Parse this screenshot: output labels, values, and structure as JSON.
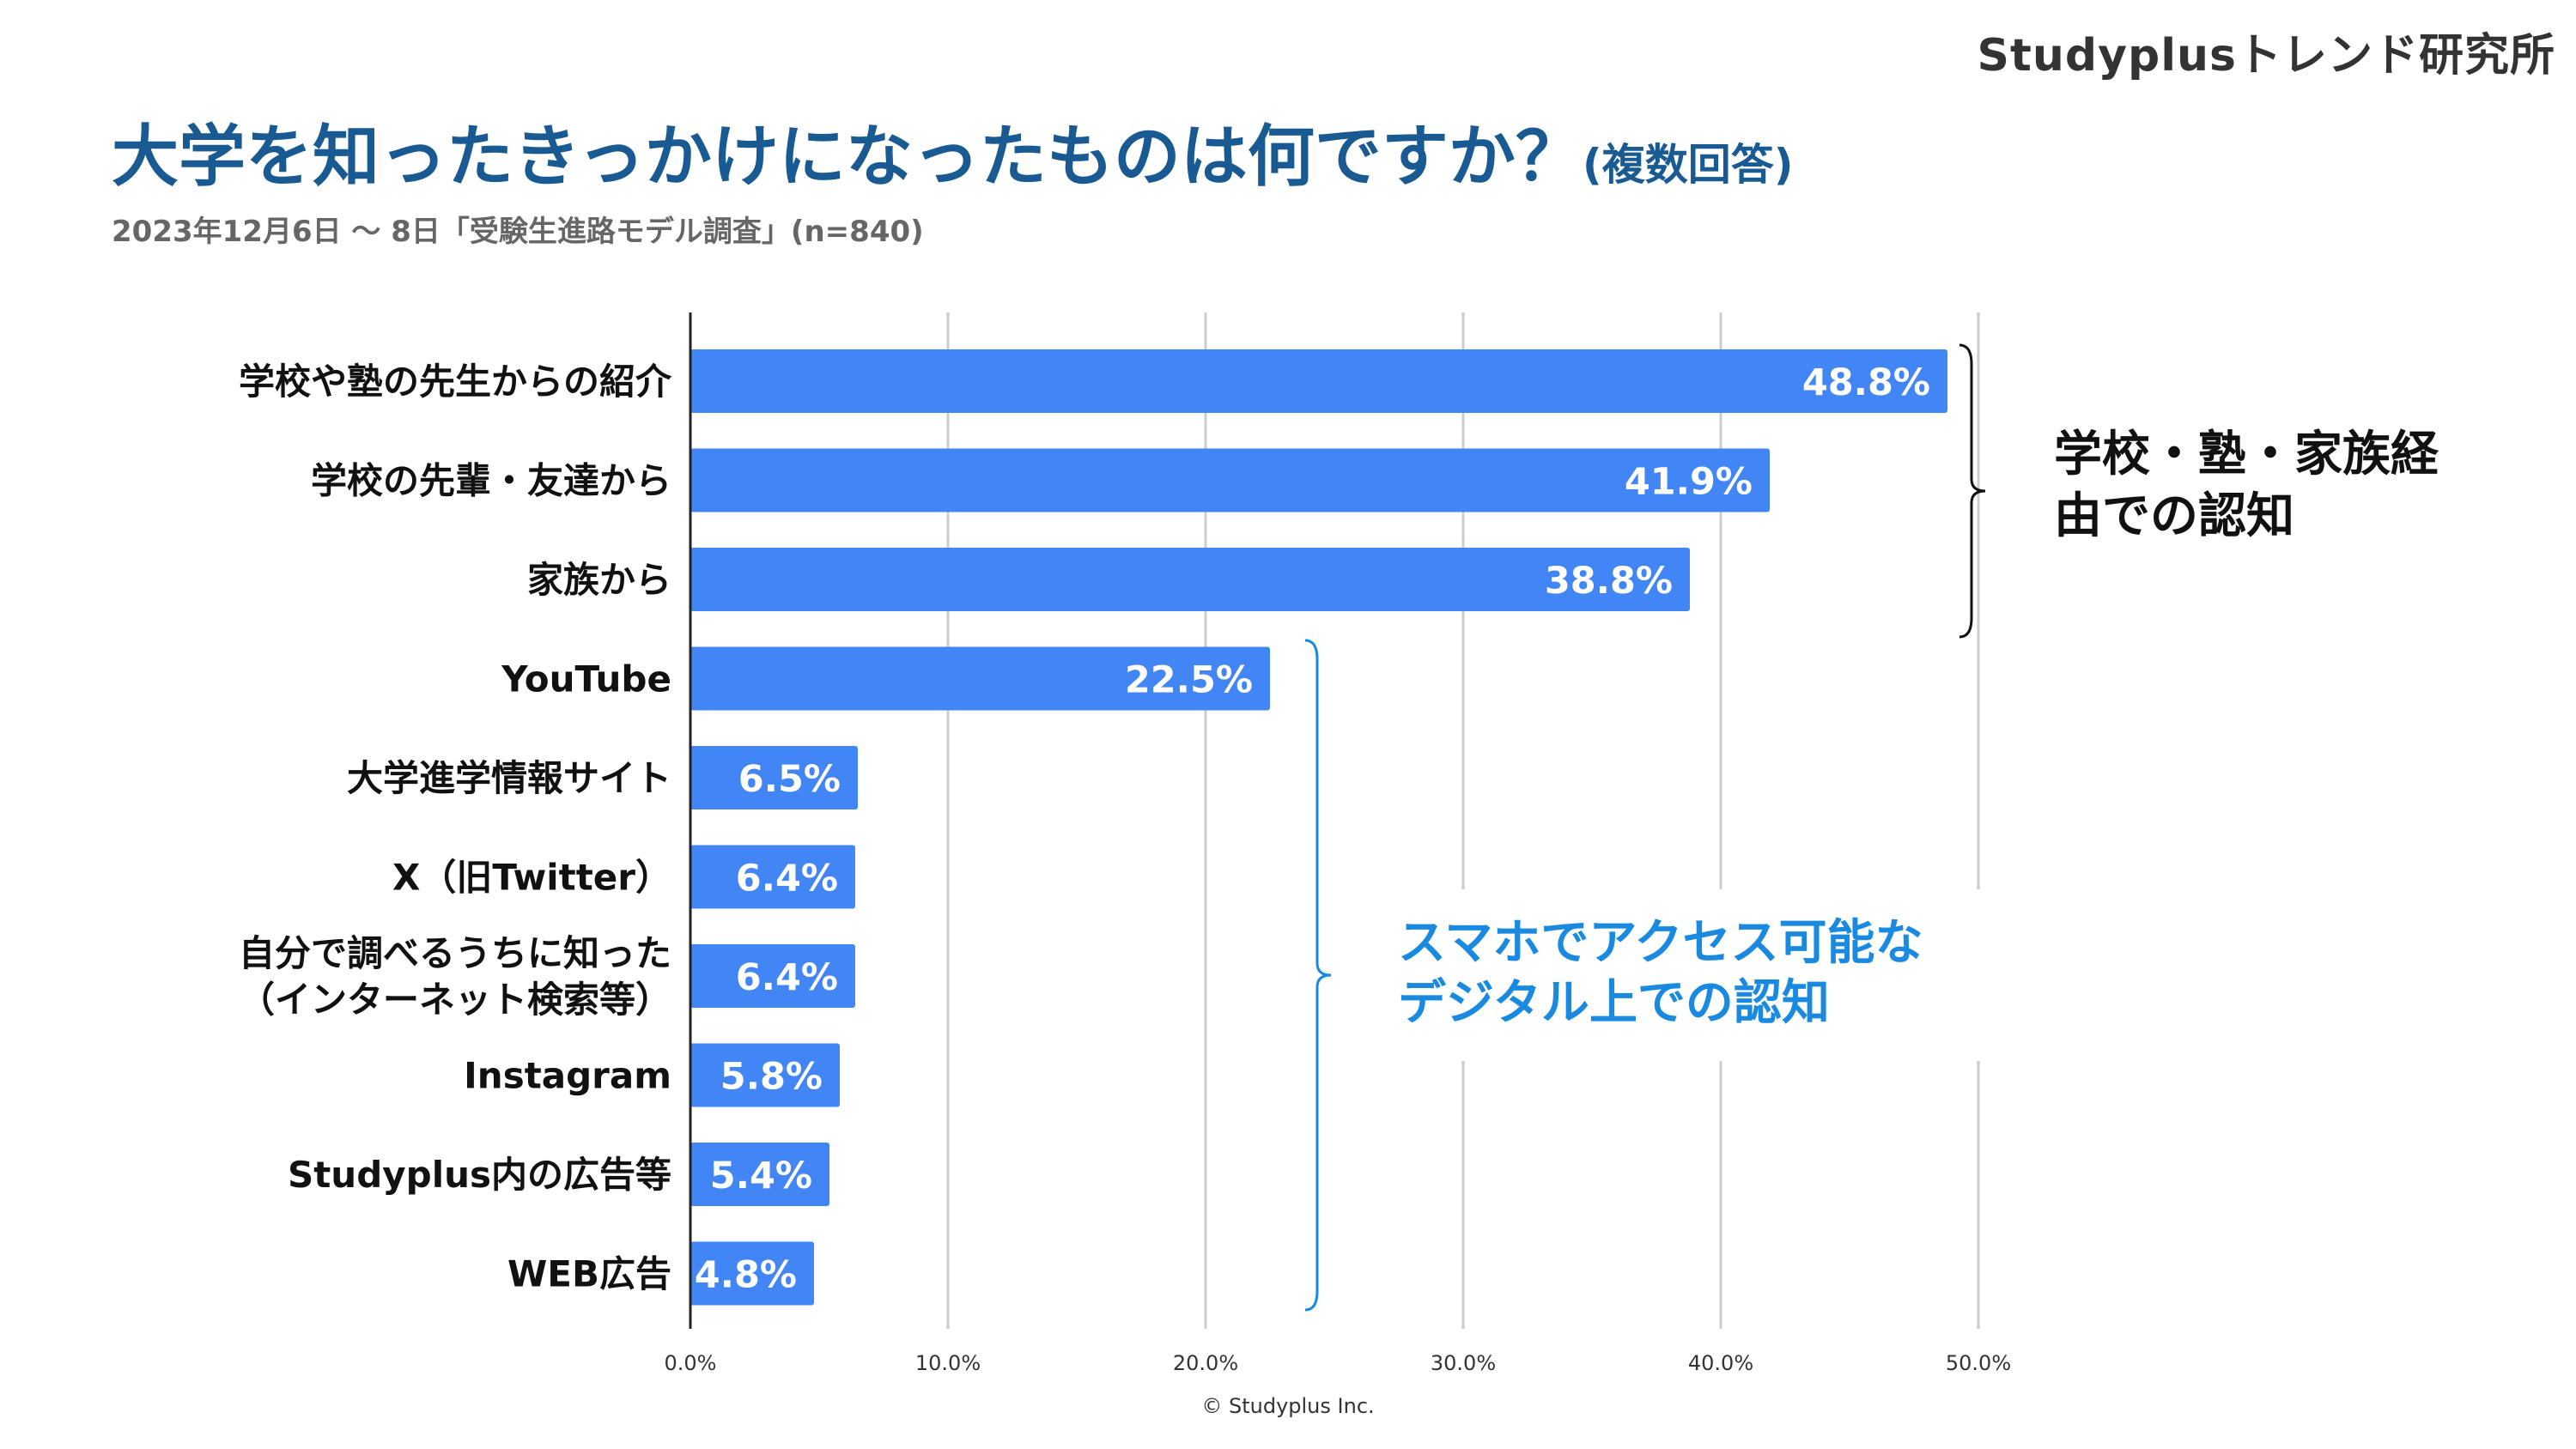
{
  "brand": "Studyplusトレンド研究所",
  "header": {
    "title": "大学を知ったきっかけになったものは何ですか？",
    "title_note": "(複数回答)",
    "subtitle": "2023年12月6日 〜 8日「受験生進路モデル調査」(n=840)"
  },
  "chart_data": {
    "type": "bar",
    "orientation": "horizontal",
    "title": "大学を知ったきっかけになったものは何ですか？(複数回答)",
    "categories": [
      [
        "学校や塾の先生からの紹介"
      ],
      [
        "学校の先輩・友達から"
      ],
      [
        "家族から"
      ],
      [
        "YouTube"
      ],
      [
        "大学進学情報サイト"
      ],
      [
        "X（旧Twitter）"
      ],
      [
        "自分で調べるうちに知った",
        "（インターネット検索等）"
      ],
      [
        "Instagram"
      ],
      [
        "Studyplus内の広告等"
      ],
      [
        "WEB広告"
      ]
    ],
    "values": [
      48.8,
      41.9,
      38.8,
      22.5,
      6.5,
      6.4,
      6.4,
      5.8,
      5.4,
      4.8
    ],
    "value_labels": [
      "48.8%",
      "41.9%",
      "38.8%",
      "22.5%",
      "6.5%",
      "6.4%",
      "6.4%",
      "5.8%",
      "5.4%",
      "4.8%"
    ],
    "xlim": [
      0,
      50
    ],
    "xticks": [
      0,
      10,
      20,
      30,
      40,
      50
    ],
    "xtick_labels": [
      "0.0%",
      "10.0%",
      "20.0%",
      "30.0%",
      "40.0%",
      "50.0%"
    ],
    "grid": true,
    "bar_color": "#4285f4",
    "grid_color": "#cccccc"
  },
  "annotations": {
    "family_group": {
      "lines": [
        "学校・塾・家族経",
        "由での認知"
      ],
      "color": "#111111"
    },
    "digital_group": {
      "lines": [
        "スマホでアクセス可能な",
        "デジタル上での認知"
      ],
      "color": "#1a8ae0"
    }
  },
  "footer": {
    "copyright": "© Studyplus Inc."
  }
}
